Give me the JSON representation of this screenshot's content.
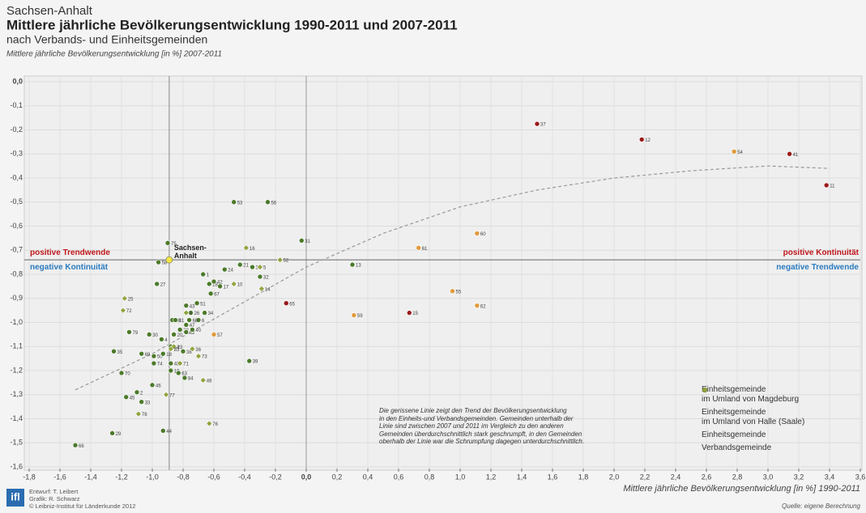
{
  "chart_data": {
    "type": "scatter",
    "region": "Sachsen-Anhalt",
    "title": "Mittlere jährliche Bevölkerungsentwicklung 1990-2011 und 2007-2011",
    "subtitle": "nach Verbands- und Einheitsgemeinden",
    "y_label": "Mittlere jährliche Bevölkerungsentwicklung [in %] 2007-2011",
    "x_label": "Mittlere jährliche Bevölkerungsentwicklung [in %] 1990-2011",
    "xlim": [
      -1.8,
      3.6
    ],
    "ylim": [
      -1.6,
      0
    ],
    "xticks": [
      {
        "value": -1.8,
        "label": "-1,8"
      },
      {
        "value": -1.6,
        "label": "-1,6"
      },
      {
        "value": -1.4,
        "label": "-1,4"
      },
      {
        "value": -1.2,
        "label": "-1,2"
      },
      {
        "value": -1.0,
        "label": "-1,0"
      },
      {
        "value": -0.8,
        "label": "-0,8"
      },
      {
        "value": -0.6,
        "label": "-0,6"
      },
      {
        "value": -0.4,
        "label": "-0,4"
      },
      {
        "value": -0.2,
        "label": "-0,2"
      },
      {
        "value": 0,
        "label": "0,0"
      },
      {
        "value": 0.2,
        "label": "0,2"
      },
      {
        "value": 0.4,
        "label": "0,4"
      },
      {
        "value": 0.6,
        "label": "0,6"
      },
      {
        "value": 0.8,
        "label": "0,8"
      },
      {
        "value": 1.0,
        "label": "1,0"
      },
      {
        "value": 1.2,
        "label": "1,2"
      },
      {
        "value": 1.4,
        "label": "1,4"
      },
      {
        "value": 1.6,
        "label": "1,6"
      },
      {
        "value": 1.8,
        "label": "1,8"
      },
      {
        "value": 2.0,
        "label": "2,0"
      },
      {
        "value": 2.2,
        "label": "2,2"
      },
      {
        "value": 2.4,
        "label": "2,4"
      },
      {
        "value": 2.6,
        "label": "2,6"
      },
      {
        "value": 2.8,
        "label": "2,8"
      },
      {
        "value": 3.0,
        "label": "3,0"
      },
      {
        "value": 3.2,
        "label": "3,2"
      },
      {
        "value": 3.4,
        "label": "3,4"
      },
      {
        "value": 3.6,
        "label": "3,6"
      }
    ],
    "yticks": [
      {
        "value": 0,
        "label": "0,0"
      },
      {
        "value": -0.1,
        "label": "-0,1"
      },
      {
        "value": -0.2,
        "label": "-0,2"
      },
      {
        "value": -0.3,
        "label": "-0,3"
      },
      {
        "value": -0.4,
        "label": "-0,4"
      },
      {
        "value": -0.5,
        "label": "-0,5"
      },
      {
        "value": -0.6,
        "label": "-0,6"
      },
      {
        "value": -0.7,
        "label": "-0,7"
      },
      {
        "value": -0.8,
        "label": "-0,8"
      },
      {
        "value": -0.9,
        "label": "-0,9"
      },
      {
        "value": -1.0,
        "label": "-1,0"
      },
      {
        "value": -1.1,
        "label": "-1,1"
      },
      {
        "value": -1.2,
        "label": "-1,2"
      },
      {
        "value": -1.3,
        "label": "-1,3"
      },
      {
        "value": -1.4,
        "label": "-1,4"
      },
      {
        "value": -1.5,
        "label": "-1,5"
      },
      {
        "value": -1.6,
        "label": "-1,6"
      }
    ],
    "grid": true,
    "reference": {
      "label": "Sachsen-Anhalt",
      "x": -0.89,
      "y": -0.74,
      "color": "#f5e642"
    },
    "quadrants": {
      "top_left": "positive Trendwende",
      "bottom_left": "negative Kontinuität",
      "top_right": "positive Kontinuität",
      "bottom_right": "negative Trendwende",
      "positive_color": "#c0161b",
      "negative_color": "#2b7bbf"
    },
    "trend": {
      "x": [
        -1.5,
        -1.0,
        -0.5,
        0,
        0.5,
        1.0,
        1.5,
        2.0,
        2.5,
        3.0,
        3.4
      ],
      "y": [
        -1.28,
        -1.13,
        -0.95,
        -0.77,
        -0.63,
        -0.52,
        -0.45,
        -0.4,
        -0.37,
        -0.35,
        -0.36
      ],
      "color": "#999999"
    },
    "series": [
      {
        "name": "Einheitsgemeinde\nim Umland von Magdeburg",
        "color": "#9b1a1a",
        "marker": "circle",
        "x": [
          1.5,
          2.18,
          3.14,
          3.38,
          -0.13,
          0.67
        ],
        "values": [
          -0.175,
          -0.24,
          -0.3,
          -0.43,
          -0.92,
          -0.96
        ],
        "labels": [
          "37",
          "12",
          "41",
          "11",
          "65",
          "15"
        ]
      },
      {
        "name": "Einheitsgemeinde\nim Umland von Halle (Saale)",
        "color": "#e09a3a",
        "marker": "circle",
        "x": [
          2.78,
          1.11,
          0.73,
          0.95,
          1.11,
          0.31,
          -0.6
        ],
        "values": [
          -0.29,
          -0.63,
          -0.69,
          -0.87,
          -0.93,
          -0.97,
          -1.05
        ],
        "labels": [
          "54",
          "60",
          "61",
          "55",
          "62",
          "59",
          "57"
        ]
      },
      {
        "name": "Einheitsgemeinde",
        "color": "#4c7a2a",
        "marker": "circle",
        "x": [
          -0.47,
          -0.25,
          -0.03,
          0.3,
          -0.37,
          -1.5,
          -1.26,
          -0.93,
          -1.25,
          -1.2,
          -1.17,
          -1.07,
          -1.1,
          -1.0,
          -0.97,
          -1.15,
          -0.96,
          -0.9,
          -0.67,
          -0.63,
          -0.53,
          -0.43,
          -0.35,
          -0.3,
          -0.6,
          -0.56,
          -0.62,
          -0.71,
          -0.78,
          -0.75,
          -0.66,
          -0.7,
          -0.87,
          -0.85,
          -0.76,
          -0.78,
          -0.82,
          -1.02,
          -0.94,
          -0.86,
          -0.78,
          -0.74,
          -1.07,
          -0.99,
          -0.93,
          -0.99,
          -0.88,
          -0.88,
          -0.8,
          -0.88,
          -0.83,
          -0.79
        ],
        "values": [
          -0.5,
          -0.5,
          -0.66,
          -0.76,
          -1.16,
          -1.51,
          -1.46,
          -1.45,
          -1.12,
          -1.21,
          -1.31,
          -1.33,
          -1.29,
          -1.26,
          -0.84,
          -1.04,
          -0.75,
          -0.67,
          -0.8,
          -0.84,
          -0.78,
          -0.76,
          -0.77,
          -0.81,
          -0.83,
          -0.85,
          -0.88,
          -0.92,
          -0.93,
          -0.96,
          -0.96,
          -0.99,
          -0.99,
          -0.99,
          -0.99,
          -1.01,
          -1.03,
          -1.05,
          -1.07,
          -1.05,
          -1.04,
          -1.03,
          -1.13,
          -1.14,
          -1.13,
          -1.17,
          -1.1,
          -1.17,
          -1.12,
          -1.2,
          -1.21,
          -1.23
        ],
        "labels": [
          "53",
          "56",
          "31",
          "13",
          "39",
          "66",
          "29",
          "44",
          "35",
          "70",
          "45",
          "33",
          "2",
          "46",
          "27",
          "79",
          "58",
          "75",
          "1",
          "28",
          "24",
          "21",
          "3",
          "32",
          "42",
          "17",
          "67",
          "51",
          "43",
          "26",
          "34",
          "6",
          "80",
          "81",
          "68",
          "47",
          "22",
          "30",
          "4",
          "20",
          "82",
          "40",
          "69",
          "50",
          "18",
          "74",
          "64",
          "48",
          "38",
          "19",
          "63",
          "84"
        ]
      },
      {
        "name": "Verbandsgemeinde",
        "color": "#8fa43e",
        "marker": "diamond",
        "x": [
          -0.39,
          -0.17,
          -0.3,
          -0.29,
          -0.47,
          -1.18,
          -1.19,
          -0.63,
          -0.91,
          -1.09,
          -0.67,
          -0.7,
          -0.74,
          -0.86,
          -0.82,
          -0.78,
          -0.88
        ],
        "values": [
          -0.69,
          -0.74,
          -0.77,
          -0.86,
          -0.84,
          -0.9,
          -0.95,
          -1.42,
          -1.3,
          -1.38,
          -1.24,
          -1.14,
          -1.11,
          -1.1,
          -1.17,
          -0.96,
          -1.11
        ],
        "labels": [
          "16",
          "52",
          "5",
          "14",
          "10",
          "25",
          "72",
          "76",
          "77",
          "78",
          "49",
          "73",
          "36",
          "23",
          "71",
          "9",
          "83"
        ]
      }
    ],
    "legend": "bottom-right",
    "annotation": "Die gerissene Linie zeigt den Trend der Bevölkerungsentwicklung\nin den Einheits-und Verbandsgemeinden. Gemeinden unterhalb der\nLinie sind zwischen 2007 und 2011 im Vergleich zu den anderen\nGemeinden überdurchschnittlich stark geschrumpft, in den Gemeinden\noberhalb der Linie war die Schrumpfung dagegen unterdurchschnittlich.",
    "logo": "ifl",
    "credits": [
      "Entwurf: T. Leibert",
      "Grafik: R. Schwarz",
      "© Leibniz-Institut für Länderkunde 2012"
    ],
    "source": "Quelle: eigene Berechnung"
  }
}
